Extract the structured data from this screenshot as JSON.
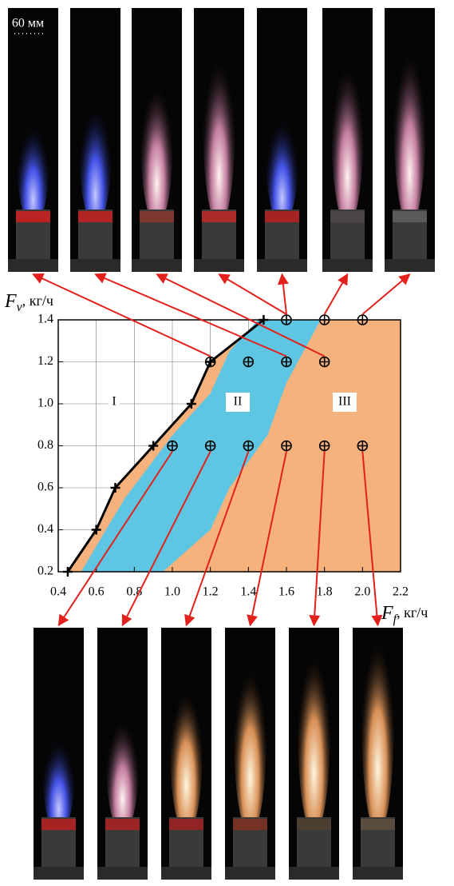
{
  "scale_bar": "60 мм",
  "chart_data": {
    "type": "scatter",
    "ylabel": {
      "symbol": "F",
      "subscript": "v",
      "unit": ", кг/ч"
    },
    "xlabel": {
      "symbol": "F",
      "subscript": "f",
      "unit": ", кг/ч"
    },
    "xlim": [
      0.4,
      2.2
    ],
    "ylim": [
      0.2,
      1.4
    ],
    "xticks": [
      0.4,
      0.6,
      0.8,
      {
        "value": 1,
        "label": "1.0"
      },
      1.2,
      1.4,
      1.6,
      1.8,
      {
        "value": 2,
        "label": "2.0"
      },
      2.2
    ],
    "yticks": [
      0.2,
      0.4,
      0.6,
      0.8,
      {
        "value": 1,
        "label": "1.0"
      },
      1.2,
      1.4
    ],
    "grid": true,
    "regions": [
      {
        "label": "I"
      },
      {
        "label": "II",
        "color": "#5ec6e2",
        "x": [
          1.45,
          1.78,
          1.6,
          1.5,
          1.3,
          1.2,
          0.95,
          0.52,
          0.75,
          1.0,
          1.2,
          1.3
        ],
        "y": [
          1.4,
          1.4,
          1.1,
          0.85,
          0.6,
          0.4,
          0.2,
          0.2,
          0.55,
          0.85,
          1.05,
          1.25
        ]
      },
      {
        "label": "III",
        "color": "#f6b27c",
        "x": [
          0.45,
          0.6,
          0.7,
          0.9,
          1.1,
          1.2,
          1.48,
          2.2,
          2.2
        ],
        "y": [
          0.2,
          0.4,
          0.6,
          0.8,
          1.0,
          1.2,
          1.4,
          1.4,
          0.2
        ]
      }
    ],
    "boundary": {
      "color": "#000000",
      "x": [
        0.45,
        0.6,
        0.7,
        0.9,
        1.1,
        1.2,
        1.48
      ],
      "y": [
        0.2,
        0.4,
        0.6,
        0.8,
        1.0,
        1.2,
        1.4
      ]
    },
    "points": {
      "color": "#000000",
      "x": [
        1.2,
        1.4,
        1.6,
        1.8,
        1.6,
        1.8,
        2.0,
        1.0,
        1.2,
        1.4,
        1.6,
        1.8,
        2.0
      ],
      "y": [
        1.2,
        1.2,
        1.2,
        1.2,
        1.4,
        1.4,
        1.4,
        0.8,
        0.8,
        0.8,
        0.8,
        0.8,
        0.8
      ]
    }
  }
}
